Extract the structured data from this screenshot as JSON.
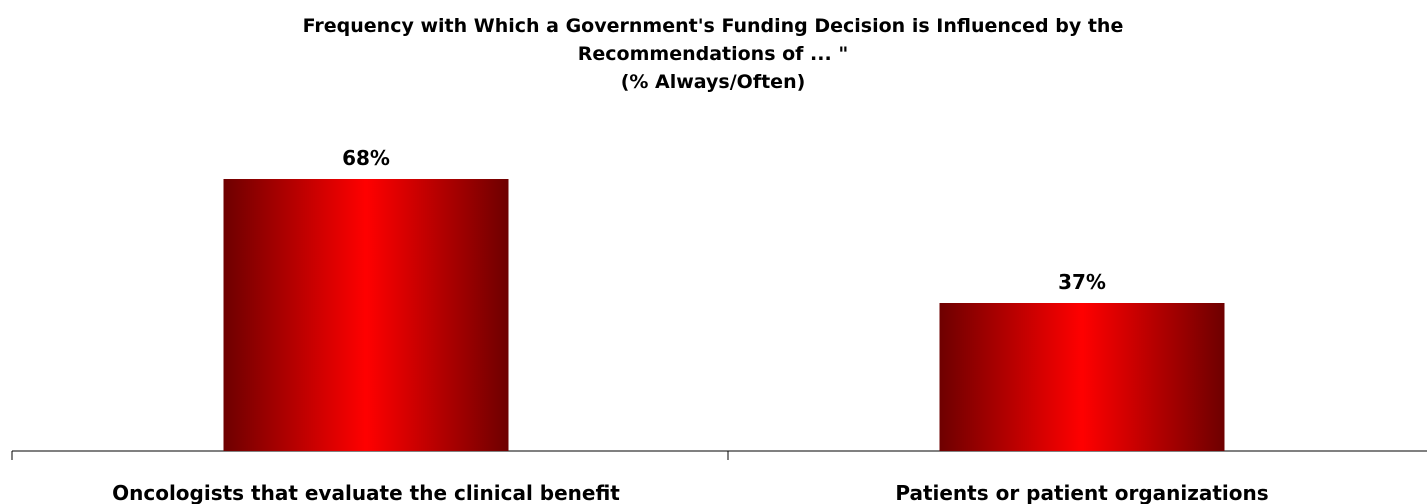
{
  "chart_data": {
    "type": "bar",
    "title": "Frequency with Which a Government's Funding Decision is Influenced by the Recommendations of ... \"",
    "subtitle": "(% Always/Often)",
    "categories": [
      "Oncologists that evaluate the clinical benefit",
      "Patients or patient organizations"
    ],
    "values": [
      68,
      37
    ],
    "value_labels": [
      "68%",
      "37%"
    ],
    "color": "#ff0000"
  }
}
